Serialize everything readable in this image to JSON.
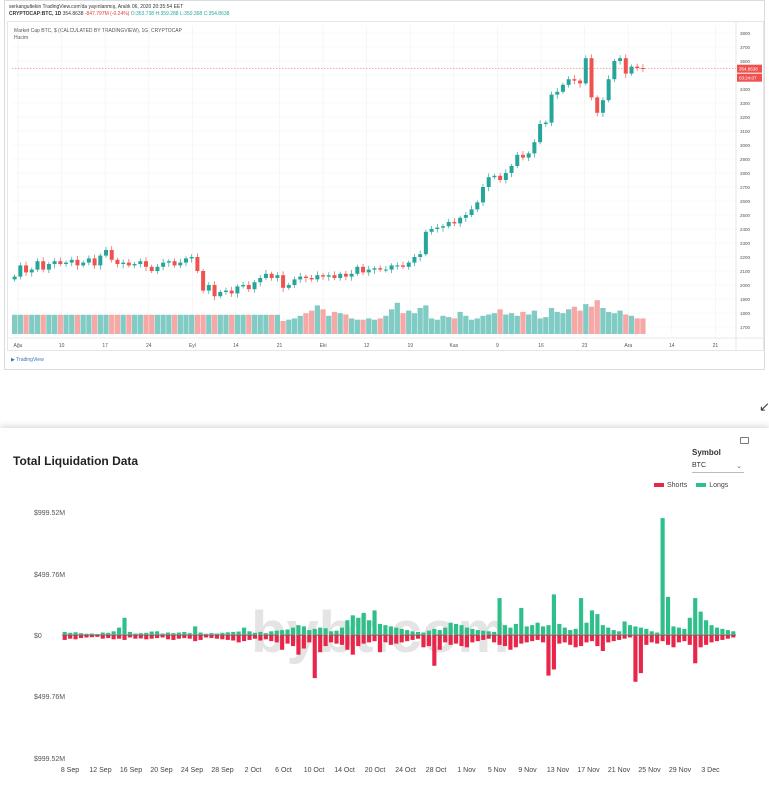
{
  "tradingview": {
    "header": "serkangultekin TradingView.com'da yayınlanmış, Aralık 06, 2020 20:35:54 EET",
    "symbol_line": "CRYPTOCAP:BTC, 1D",
    "price": "354.8638",
    "change": "-847.797M (-0.24%)",
    "ohlc": "O:353.738  H:359.288  L:350.368  C:354.8638",
    "legend_title": "Market Cap BTC, $ (CALCULATED BY TRADINGVIEW), 1G, CRYPTOCAP",
    "legend_sub": "Hacim",
    "price_tag": "354.8638",
    "time_tag": "03:24:07",
    "logo": "TradingView",
    "y_ticks": [
      "3800",
      "3700",
      "3600",
      "3500",
      "3400",
      "3300",
      "3200",
      "3100",
      "3000",
      "2900",
      "2800",
      "2700",
      "2600",
      "2500",
      "2400",
      "2300",
      "2200",
      "2100",
      "2000",
      "1900",
      "1800",
      "1700"
    ],
    "x_ticks": [
      "Ağu",
      "10",
      "17",
      "24",
      "Eyl",
      "14",
      "21",
      "Eki",
      "12",
      "19",
      "Kas",
      "9",
      "16",
      "23",
      "Ara",
      "14",
      "21"
    ],
    "colors": {
      "up": "#26a69a",
      "down": "#ef5350",
      "vol_up": "#80cbc4",
      "vol_down": "#f5a8a6"
    }
  },
  "bybt": {
    "title": "Total Liquidation Data",
    "symbol_label": "Symbol",
    "symbol_value": "BTC",
    "legend_shorts": "Shorts",
    "legend_longs": "Longs",
    "watermark": "bybt.com",
    "corner_arrow": "↙",
    "colors": {
      "shorts": "#e8264a",
      "longs": "#2fbf8a"
    }
  },
  "chart_data": [
    {
      "type": "candlestick",
      "title": "Market Cap BTC, $ (CALCULATED BY TRADINGVIEW), 1G, CRYPTOCAP",
      "ylim": [
        1650,
        3850
      ],
      "x_ticks": [
        "Ağu",
        "10",
        "17",
        "24",
        "Eyl",
        "14",
        "21",
        "Eki",
        "12",
        "19",
        "Kas",
        "9",
        "16",
        "23",
        "Ara",
        "14",
        "21"
      ],
      "closes": [
        2060,
        2140,
        2090,
        2110,
        2170,
        2110,
        2150,
        2170,
        2150,
        2160,
        2180,
        2140,
        2160,
        2190,
        2140,
        2210,
        2250,
        2180,
        2150,
        2160,
        2140,
        2150,
        2170,
        2130,
        2100,
        2130,
        2160,
        2170,
        2140,
        2160,
        2190,
        2200,
        2100,
        1960,
        2000,
        1920,
        1950,
        1960,
        1940,
        1990,
        2000,
        1970,
        2020,
        2050,
        2080,
        2050,
        2070,
        1980,
        2000,
        2040,
        2060,
        2050,
        2040,
        2070,
        2060,
        2070,
        2050,
        2080,
        2060,
        2080,
        2130,
        2090,
        2110,
        2120,
        2110,
        2110,
        2140,
        2140,
        2130,
        2160,
        2200,
        2220,
        2380,
        2400,
        2410,
        2420,
        2450,
        2440,
        2480,
        2500,
        2540,
        2590,
        2700,
        2770,
        2780,
        2750,
        2800,
        2850,
        2930,
        2910,
        2940,
        3020,
        3150,
        3160,
        3360,
        3380,
        3430,
        3470,
        3460,
        3440,
        3620,
        3340,
        3230,
        3320,
        3470,
        3600,
        3620,
        3510,
        3560,
        3550,
        3545
      ],
      "volumes": [
        0.74,
        0.74,
        0.74,
        0.74,
        0.74,
        0.74,
        0.74,
        0.74,
        0.74,
        0.74,
        0.74,
        0.74,
        0.74,
        0.74,
        0.74,
        0.74,
        0.74,
        0.74,
        0.74,
        0.74,
        0.74,
        0.74,
        0.74,
        0.74,
        0.74,
        0.74,
        0.74,
        0.74,
        0.74,
        0.74,
        0.74,
        0.74,
        0.74,
        0.74,
        0.74,
        0.74,
        0.74,
        0.74,
        0.74,
        0.74,
        0.74,
        0.74,
        0.74,
        0.74,
        0.74,
        0.74,
        0.74,
        0.5,
        0.55,
        0.6,
        0.7,
        0.8,
        0.9,
        1.1,
        0.95,
        0.7,
        0.85,
        0.8,
        0.75,
        0.6,
        0.55,
        0.55,
        0.6,
        0.55,
        0.6,
        0.7,
        0.95,
        1.2,
        0.8,
        0.9,
        0.8,
        1.0,
        1.1,
        0.6,
        0.55,
        0.7,
        0.65,
        0.6,
        0.85,
        0.7,
        0.55,
        0.6,
        0.7,
        0.75,
        0.8,
        0.95,
        0.75,
        0.8,
        0.7,
        0.85,
        0.75,
        0.9,
        0.6,
        0.65,
        1.0,
        0.85,
        0.8,
        0.95,
        1.05,
        0.9,
        1.15,
        1.05,
        1.3,
        1.0,
        0.85,
        0.8,
        0.9,
        0.75,
        0.7,
        0.6,
        0.6
      ]
    },
    {
      "type": "bar",
      "title": "Total Liquidation Data",
      "ylim": [
        -999.52,
        999.52
      ],
      "y_ticks": [
        "$999.52M",
        "$499.76M",
        "$0",
        "$499.76M",
        "$999.52M"
      ],
      "x_ticks": [
        "8 Sep",
        "12 Sep",
        "16 Sep",
        "20 Sep",
        "24 Sep",
        "28 Sep",
        "2 Oct",
        "6 Oct",
        "10 Oct",
        "14 Oct",
        "20 Oct",
        "24 Oct",
        "28 Oct",
        "1 Nov",
        "5 Nov",
        "9 Nov",
        "13 Nov",
        "17 Nov",
        "21 Nov",
        "25 Nov",
        "29 Nov",
        "3 Dec"
      ],
      "series": [
        {
          "name": "Longs",
          "values": [
            25,
            18,
            22,
            15,
            10,
            12,
            8,
            20,
            18,
            30,
            60,
            140,
            25,
            12,
            15,
            18,
            28,
            30,
            12,
            20,
            15,
            20,
            25,
            15,
            70,
            20,
            10,
            15,
            12,
            18,
            22,
            25,
            28,
            60,
            30,
            18,
            25,
            15,
            30,
            35,
            40,
            45,
            60,
            80,
            70,
            40,
            50,
            60,
            55,
            30,
            35,
            60,
            120,
            160,
            140,
            180,
            120,
            200,
            90,
            80,
            70,
            60,
            50,
            40,
            30,
            25,
            20,
            35,
            50,
            40,
            60,
            100,
            90,
            80,
            60,
            50,
            40,
            35,
            30,
            25,
            300,
            80,
            60,
            90,
            220,
            70,
            80,
            100,
            70,
            80,
            330,
            90,
            60,
            40,
            50,
            300,
            100,
            200,
            170,
            80,
            60,
            40,
            30,
            110,
            80,
            70,
            60,
            50,
            30,
            20,
            950,
            310,
            70,
            60,
            50,
            140,
            300,
            190,
            120,
            80,
            60,
            50,
            40,
            30
          ]
        },
        {
          "name": "Shorts",
          "values": [
            40,
            30,
            35,
            25,
            20,
            18,
            15,
            30,
            25,
            35,
            30,
            40,
            20,
            30,
            28,
            35,
            30,
            25,
            20,
            35,
            40,
            30,
            25,
            30,
            50,
            40,
            20,
            25,
            30,
            35,
            40,
            45,
            60,
            50,
            40,
            30,
            45,
            35,
            50,
            60,
            120,
            70,
            90,
            160,
            110,
            60,
            350,
            140,
            90,
            60,
            70,
            80,
            120,
            160,
            90,
            70,
            60,
            50,
            140,
            60,
            80,
            70,
            60,
            50,
            40,
            30,
            100,
            90,
            250,
            120,
            60,
            80,
            70,
            90,
            100,
            60,
            50,
            40,
            30,
            60,
            80,
            90,
            120,
            100,
            70,
            60,
            50,
            40,
            60,
            330,
            280,
            70,
            60,
            80,
            100,
            90,
            60,
            50,
            90,
            130,
            60,
            50,
            40,
            30,
            20,
            380,
            310,
            80,
            60,
            70,
            50,
            80,
            100,
            60,
            50,
            80,
            230,
            100,
            80,
            60,
            50,
            40,
            30,
            20
          ]
        }
      ]
    }
  ]
}
